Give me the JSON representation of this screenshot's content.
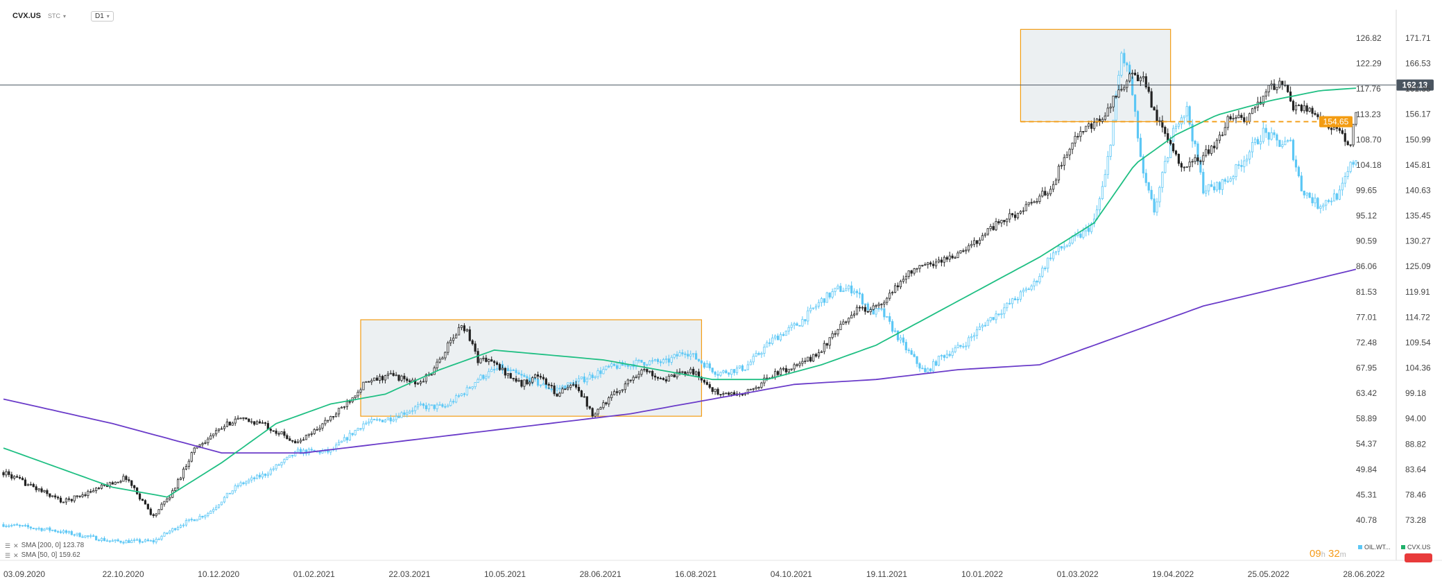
{
  "toolbar": {
    "symbol": "CVX.US",
    "chart_style": "STC",
    "timeframe": "D1"
  },
  "indicators": [
    {
      "label": "SMA [200, 0] 123.78"
    },
    {
      "label": "SMA [50, 0] 159.62"
    }
  ],
  "timer": {
    "hours": "09",
    "h": "h",
    "minutes": "32",
    "m": "m"
  },
  "legend": [
    {
      "label": "OIL.WT...",
      "color": "#5cc7f5"
    },
    {
      "label": "CVX.US",
      "color": "#20b06a"
    }
  ],
  "colors": {
    "cvx_up": "#222222",
    "cvx_down": "#c0392b",
    "oil": "#5cc7f5",
    "sma50": "#1fbf83",
    "sma200": "#6a3bc9",
    "box": "#f39c12",
    "box_fill": "#e9edf0",
    "price_tag": "#4a5560",
    "level_tag": "#f39c12"
  },
  "chart_data": {
    "type": "candlestick",
    "x_dates": [
      "03.09.2020",
      "22.10.2020",
      "10.12.2020",
      "01.02.2021",
      "22.03.2021",
      "10.05.2021",
      "28.06.2021",
      "16.08.2021",
      "04.10.2021",
      "19.11.2021",
      "10.01.2022",
      "01.03.2022",
      "19.04.2022",
      "25.05.2022",
      "28.06.2022"
    ],
    "left_axis": {
      "series": "OIL.WT",
      "ticks": [
        126.82,
        122.29,
        117.76,
        113.23,
        108.7,
        104.18,
        99.65,
        95.12,
        90.59,
        86.06,
        81.53,
        77.01,
        72.48,
        67.95,
        63.42,
        58.89,
        54.37,
        49.84,
        45.31,
        40.78
      ]
    },
    "right_axis": {
      "series": "CVX.US",
      "ticks": [
        171.71,
        166.53,
        161.35,
        156.17,
        150.99,
        145.81,
        140.63,
        135.45,
        130.27,
        125.09,
        119.91,
        114.72,
        109.54,
        104.36,
        99.18,
        94.0,
        88.82,
        83.64,
        78.46,
        73.28
      ],
      "current_price": 162.13,
      "current_price_label": "162.13"
    },
    "horizontal_level": {
      "value": 154.65,
      "label": "154.65",
      "style": "dashed"
    },
    "consolidation_boxes": [
      {
        "from": "2021-03-05",
        "to": "2021-08-27",
        "low": 94.5,
        "high": 114.2
      },
      {
        "from": "2022-02-07",
        "to": "2022-04-25",
        "low": 154.65,
        "high": 173.5
      }
    ],
    "cvx_path": [
      [
        0,
        83
      ],
      [
        22,
        77
      ],
      [
        45,
        82
      ],
      [
        55,
        74
      ],
      [
        62,
        79
      ],
      [
        70,
        88
      ],
      [
        85,
        94
      ],
      [
        95,
        93
      ],
      [
        108,
        89
      ],
      [
        122,
        95
      ],
      [
        132,
        101
      ],
      [
        142,
        103
      ],
      [
        152,
        101
      ],
      [
        158,
        104
      ],
      [
        162,
        108
      ],
      [
        168,
        113
      ],
      [
        170,
        112
      ],
      [
        174,
        106
      ],
      [
        178,
        106
      ],
      [
        185,
        103
      ],
      [
        190,
        101
      ],
      [
        196,
        103
      ],
      [
        203,
        99
      ],
      [
        210,
        101
      ],
      [
        216,
        95
      ],
      [
        222,
        98
      ],
      [
        234,
        104
      ],
      [
        243,
        102
      ],
      [
        252,
        104
      ],
      [
        262,
        99
      ],
      [
        272,
        99
      ],
      [
        282,
        103
      ],
      [
        292,
        105
      ],
      [
        298,
        107
      ],
      [
        306,
        112
      ],
      [
        312,
        116
      ],
      [
        322,
        117
      ],
      [
        332,
        124
      ],
      [
        342,
        126
      ],
      [
        352,
        128
      ],
      [
        362,
        133
      ],
      [
        375,
        137
      ],
      [
        384,
        141
      ],
      [
        392,
        151
      ],
      [
        397,
        153
      ],
      [
        403,
        155
      ],
      [
        408,
        160
      ],
      [
        413,
        164
      ],
      [
        418,
        163
      ],
      [
        424,
        154
      ],
      [
        432,
        146
      ],
      [
        436,
        146
      ],
      [
        445,
        150
      ],
      [
        450,
        156
      ],
      [
        456,
        155
      ],
      [
        465,
        162
      ],
      [
        470,
        162
      ],
      [
        472,
        158
      ],
      [
        480,
        157
      ],
      [
        494,
        150
      ],
      [
        496,
        157
      ]
    ],
    "oil_path": [
      [
        0,
        40
      ],
      [
        18,
        39
      ],
      [
        40,
        37
      ],
      [
        55,
        37
      ],
      [
        65,
        40
      ],
      [
        75,
        42
      ],
      [
        86,
        47
      ],
      [
        96,
        49
      ],
      [
        108,
        53
      ],
      [
        120,
        53
      ],
      [
        132,
        58
      ],
      [
        142,
        59
      ],
      [
        152,
        61
      ],
      [
        162,
        61
      ],
      [
        170,
        64
      ],
      [
        174,
        66
      ],
      [
        182,
        68
      ],
      [
        192,
        66
      ],
      [
        202,
        64
      ],
      [
        213,
        66
      ],
      [
        222,
        68
      ],
      [
        234,
        69
      ],
      [
        243,
        69
      ],
      [
        250,
        71
      ],
      [
        262,
        67
      ],
      [
        272,
        68
      ],
      [
        282,
        73
      ],
      [
        292,
        76
      ],
      [
        300,
        80
      ],
      [
        306,
        82
      ],
      [
        312,
        82
      ],
      [
        318,
        78
      ],
      [
        322,
        78
      ],
      [
        330,
        72
      ],
      [
        338,
        67
      ],
      [
        344,
        70
      ],
      [
        352,
        72
      ],
      [
        360,
        76
      ],
      [
        368,
        79
      ],
      [
        378,
        83
      ],
      [
        384,
        88
      ],
      [
        390,
        90
      ],
      [
        396,
        92
      ],
      [
        400,
        94
      ],
      [
        404,
        102
      ],
      [
        407,
        112
      ],
      [
        410,
        124
      ],
      [
        413,
        120
      ],
      [
        418,
        102
      ],
      [
        422,
        96
      ],
      [
        430,
        112
      ],
      [
        434,
        114
      ],
      [
        440,
        100
      ],
      [
        444,
        100
      ],
      [
        450,
        102
      ],
      [
        456,
        106
      ],
      [
        462,
        110
      ],
      [
        468,
        108
      ],
      [
        472,
        108
      ],
      [
        476,
        100
      ],
      [
        482,
        97
      ],
      [
        490,
        99
      ],
      [
        494,
        104
      ],
      [
        497,
        106
      ]
    ],
    "sma50_path": [
      [
        0,
        88
      ],
      [
        20,
        84
      ],
      [
        40,
        80
      ],
      [
        60,
        78
      ],
      [
        80,
        85
      ],
      [
        100,
        93
      ],
      [
        120,
        97
      ],
      [
        140,
        99
      ],
      [
        160,
        104
      ],
      [
        180,
        108
      ],
      [
        200,
        107
      ],
      [
        220,
        106
      ],
      [
        240,
        104
      ],
      [
        260,
        102
      ],
      [
        280,
        102
      ],
      [
        300,
        105
      ],
      [
        320,
        109
      ],
      [
        340,
        115
      ],
      [
        360,
        121
      ],
      [
        380,
        127
      ],
      [
        400,
        134
      ],
      [
        415,
        146
      ],
      [
        430,
        152
      ],
      [
        445,
        156
      ],
      [
        465,
        159
      ],
      [
        483,
        161
      ],
      [
        496,
        161.5
      ]
    ],
    "sma200_path": [
      [
        0,
        98
      ],
      [
        40,
        93
      ],
      [
        80,
        87
      ],
      [
        110,
        87
      ],
      [
        140,
        89
      ],
      [
        170,
        91
      ],
      [
        200,
        93
      ],
      [
        230,
        95
      ],
      [
        260,
        98
      ],
      [
        290,
        101
      ],
      [
        320,
        102
      ],
      [
        350,
        104
      ],
      [
        380,
        105
      ],
      [
        410,
        111
      ],
      [
        440,
        117
      ],
      [
        470,
        121
      ],
      [
        496,
        124.5
      ]
    ]
  }
}
